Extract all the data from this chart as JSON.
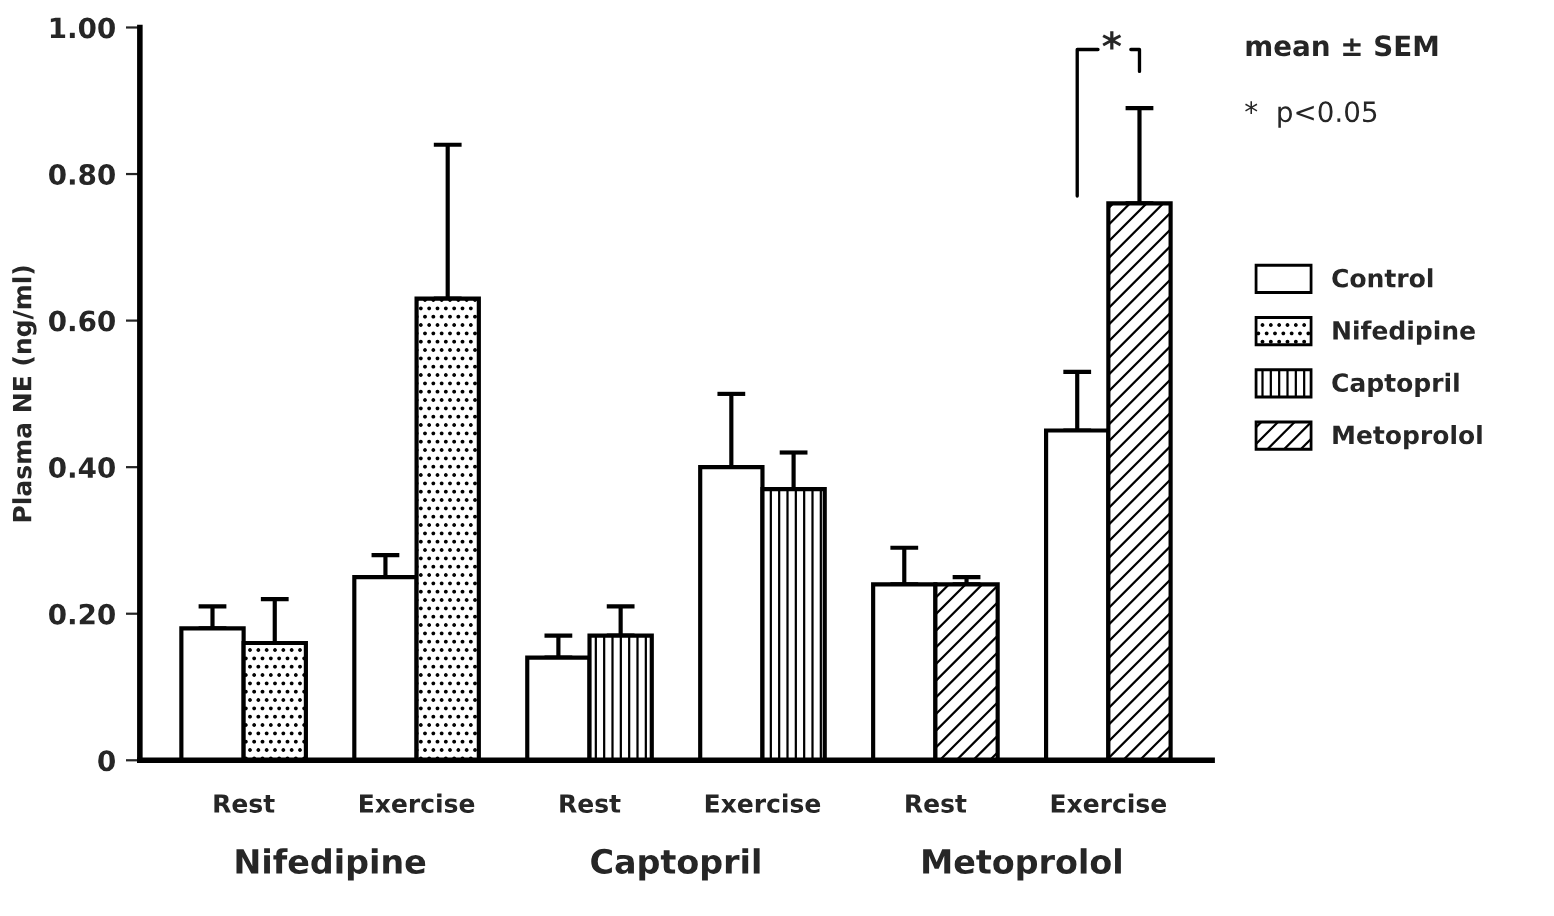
{
  "chart_data": {
    "type": "bar",
    "ylabel": "Plasma NE (ng/ml)",
    "categories": [
      "Rest",
      "Exercise",
      "Rest",
      "Exercise",
      "Rest",
      "Exercise"
    ],
    "series": [
      {
        "name": "Control",
        "color": "#ffffff",
        "values": [
          0.18,
          0.25,
          0.14,
          0.4,
          0.24,
          0.45
        ],
        "errors": [
          [
            0.18,
            0.21
          ],
          [
            0.25,
            0.28
          ],
          [
            0.14,
            0.17
          ],
          [
            0.4,
            0.5
          ],
          [
            0.24,
            0.29
          ],
          [
            0.45,
            0.53
          ]
        ]
      },
      {
        "name": "Nifedipine",
        "color": "#000000",
        "values": [
          0.16,
          0.63,
          null,
          null,
          null,
          null
        ],
        "errors": [
          [
            0.16,
            0.22
          ],
          [
            0.63,
            0.84
          ],
          null,
          null,
          null,
          null
        ]
      },
      {
        "name": "Captopril",
        "color": "#000000",
        "values": [
          null,
          null,
          0.17,
          0.37,
          null,
          null
        ],
        "errors": [
          null,
          null,
          [
            0.17,
            0.21
          ],
          [
            0.37,
            0.42
          ],
          null,
          null
        ]
      },
      {
        "name": "Metoprolol",
        "color": "#000000",
        "values": [
          null,
          null,
          null,
          null,
          0.24,
          0.76
        ],
        "errors": [
          null,
          null,
          null,
          null,
          [
            0.24,
            0.25
          ],
          [
            0.76,
            0.89
          ]
        ]
      }
    ],
    "ylim": [
      0,
      1.0
    ],
    "yticks": [
      0,
      {
        "value": 0.2,
        "label": "0.20"
      },
      {
        "value": 0.4,
        "label": "0.40"
      },
      {
        "value": 0.6,
        "label": "0.60"
      },
      {
        "value": 0.8,
        "label": "0.80"
      },
      {
        "value": 1.0,
        "label": "1.00"
      }
    ],
    "annotations": [
      "mean ± SEM",
      "*  p<0.05",
      "*",
      "Nifedipine",
      "Captopril",
      "Metoprolol"
    ],
    "legend": "right",
    "grid": false
  }
}
